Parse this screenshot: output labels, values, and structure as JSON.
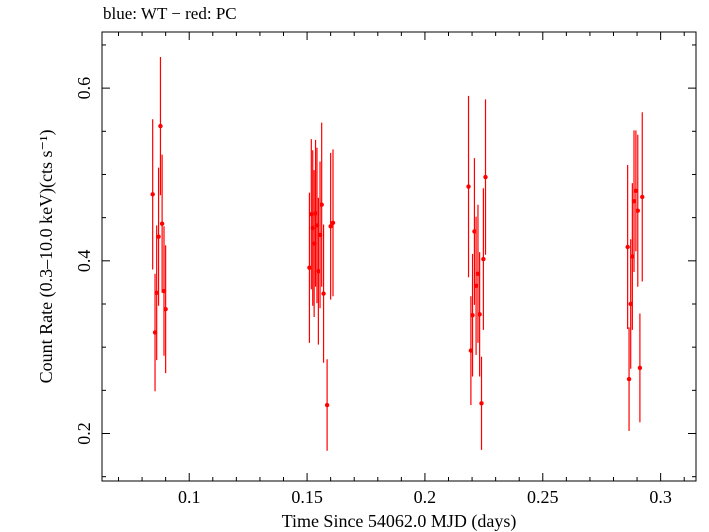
{
  "header_text": "blue: WT − red: PC",
  "chart_data": {
    "type": "scatter",
    "title": "blue: WT − red: PC",
    "xlabel": "Time Since 54062.0 MJD (days)",
    "ylabel": "Count Rate (0.3–10.0 keV)(cts s⁻¹)",
    "xlim": [
      0.063,
      0.315
    ],
    "ylim": [
      0.145,
      0.665
    ],
    "x_ticks": [
      0.1,
      0.15,
      0.2,
      0.25,
      0.3
    ],
    "x_tick_labels": [
      "0.1",
      "0.15",
      "0.2",
      "0.25",
      "0.3"
    ],
    "y_ticks": [
      0.2,
      0.4,
      0.6
    ],
    "y_tick_labels": [
      "0.2",
      "0.4",
      "0.6"
    ],
    "grid": false,
    "series": [
      {
        "name": "PC",
        "color": "#ff0000",
        "points": [
          {
            "x": 0.0845,
            "y": 0.477,
            "err": 0.087
          },
          {
            "x": 0.0855,
            "y": 0.317,
            "err": 0.068
          },
          {
            "x": 0.0862,
            "y": 0.363,
            "err": 0.078
          },
          {
            "x": 0.087,
            "y": 0.428,
            "err": 0.08
          },
          {
            "x": 0.0878,
            "y": 0.556,
            "err": 0.08
          },
          {
            "x": 0.0885,
            "y": 0.443,
            "err": 0.08
          },
          {
            "x": 0.0893,
            "y": 0.365,
            "err": 0.075
          },
          {
            "x": 0.09,
            "y": 0.344,
            "err": 0.074
          },
          {
            "x": 0.151,
            "y": 0.392,
            "err": 0.087
          },
          {
            "x": 0.1518,
            "y": 0.454,
            "err": 0.087
          },
          {
            "x": 0.1524,
            "y": 0.438,
            "err": 0.09
          },
          {
            "x": 0.153,
            "y": 0.42,
            "err": 0.085
          },
          {
            "x": 0.1536,
            "y": 0.455,
            "err": 0.085
          },
          {
            "x": 0.1542,
            "y": 0.441,
            "err": 0.09
          },
          {
            "x": 0.1548,
            "y": 0.388,
            "err": 0.085
          },
          {
            "x": 0.1555,
            "y": 0.43,
            "err": 0.085
          },
          {
            "x": 0.1562,
            "y": 0.465,
            "err": 0.095
          },
          {
            "x": 0.157,
            "y": 0.362,
            "err": 0.08
          },
          {
            "x": 0.1585,
            "y": 0.233,
            "err": 0.053
          },
          {
            "x": 0.16,
            "y": 0.44,
            "err": 0.085
          },
          {
            "x": 0.161,
            "y": 0.444,
            "err": 0.085
          },
          {
            "x": 0.2185,
            "y": 0.486,
            "err": 0.105
          },
          {
            "x": 0.2195,
            "y": 0.296,
            "err": 0.063
          },
          {
            "x": 0.2202,
            "y": 0.337,
            "err": 0.071
          },
          {
            "x": 0.221,
            "y": 0.434,
            "err": 0.085
          },
          {
            "x": 0.2217,
            "y": 0.371,
            "err": 0.08
          },
          {
            "x": 0.2225,
            "y": 0.385,
            "err": 0.08
          },
          {
            "x": 0.2232,
            "y": 0.338,
            "err": 0.072
          },
          {
            "x": 0.224,
            "y": 0.235,
            "err": 0.054
          },
          {
            "x": 0.2248,
            "y": 0.402,
            "err": 0.082
          },
          {
            "x": 0.2257,
            "y": 0.497,
            "err": 0.09
          },
          {
            "x": 0.286,
            "y": 0.416,
            "err": 0.095
          },
          {
            "x": 0.2866,
            "y": 0.263,
            "err": 0.06
          },
          {
            "x": 0.2873,
            "y": 0.35,
            "err": 0.075
          },
          {
            "x": 0.288,
            "y": 0.405,
            "err": 0.085
          },
          {
            "x": 0.2887,
            "y": 0.469,
            "err": 0.082
          },
          {
            "x": 0.2895,
            "y": 0.481,
            "err": 0.07
          },
          {
            "x": 0.2903,
            "y": 0.458,
            "err": 0.088
          },
          {
            "x": 0.2912,
            "y": 0.276,
            "err": 0.063
          },
          {
            "x": 0.2922,
            "y": 0.474,
            "err": 0.098
          }
        ]
      }
    ]
  }
}
